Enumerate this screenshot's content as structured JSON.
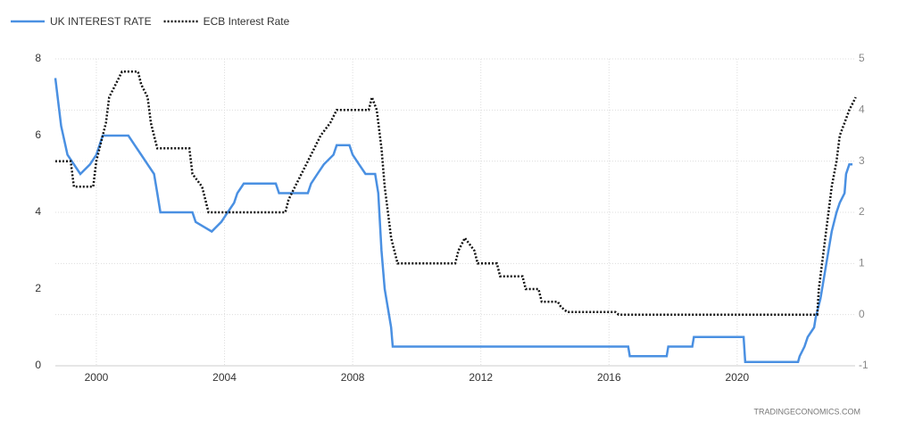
{
  "chart_data": {
    "type": "line",
    "source": "TRADINGECONOMICS.COM",
    "xlim": [
      1998.72,
      2023.68
    ],
    "xticks": [
      2000,
      2004,
      2008,
      2012,
      2016,
      2020
    ],
    "ylim": [
      0,
      8
    ],
    "yticks": [
      0,
      2,
      4,
      6,
      8
    ],
    "y2lim": [
      -1,
      5
    ],
    "y2ticks": [
      -1,
      0,
      1,
      2,
      3,
      4,
      5
    ],
    "grid": true,
    "legend": "top-left",
    "series": [
      {
        "name": "UK INTEREST RATE",
        "color": "#4a90e2",
        "dash": "solid",
        "x": [
          1998.72,
          1998.9,
          1999.1,
          1999.5,
          1999.8,
          2000.0,
          2000.2,
          2001.0,
          2001.2,
          2001.4,
          2001.6,
          2001.8,
          2001.9,
          2002.0,
          2003.0,
          2003.1,
          2003.6,
          2003.9,
          2004.1,
          2004.3,
          2004.4,
          2004.6,
          2005.6,
          2005.7,
          2006.6,
          2006.7,
          2006.9,
          2007.1,
          2007.4,
          2007.5,
          2007.9,
          2008.0,
          2008.2,
          2008.4,
          2008.7,
          2008.8,
          2008.9,
          2009.0,
          2009.1,
          2009.2,
          2009.25,
          2016.6,
          2016.65,
          2017.8,
          2017.85,
          2018.6,
          2018.65,
          2020.2,
          2020.25,
          2021.9,
          2021.95,
          2022.1,
          2022.2,
          2022.4,
          2022.45,
          2022.6,
          2022.7,
          2022.85,
          2022.95,
          2023.1,
          2023.2,
          2023.35,
          2023.4,
          2023.5,
          2023.6
        ],
        "values": [
          7.5,
          6.25,
          5.5,
          5.0,
          5.25,
          5.5,
          6.0,
          6.0,
          5.75,
          5.5,
          5.25,
          5.0,
          4.5,
          4.0,
          4.0,
          3.75,
          3.5,
          3.75,
          4.0,
          4.25,
          4.5,
          4.75,
          4.75,
          4.5,
          4.5,
          4.75,
          5.0,
          5.25,
          5.5,
          5.75,
          5.75,
          5.5,
          5.25,
          5.0,
          5.0,
          4.5,
          3.0,
          2.0,
          1.5,
          1.0,
          0.5,
          0.5,
          0.25,
          0.25,
          0.5,
          0.5,
          0.75,
          0.75,
          0.1,
          0.1,
          0.25,
          0.5,
          0.75,
          1.0,
          1.25,
          1.75,
          2.25,
          3.0,
          3.5,
          4.0,
          4.25,
          4.5,
          5.0,
          5.25,
          5.25
        ]
      },
      {
        "name": "ECB Interest Rate",
        "color": "#111111",
        "dash": "dotted",
        "axis": "y2",
        "x": [
          1998.72,
          1999.2,
          1999.3,
          1999.9,
          2000.0,
          2000.1,
          2000.2,
          2000.3,
          2000.4,
          2000.6,
          2000.8,
          2001.3,
          2001.4,
          2001.6,
          2001.7,
          2001.9,
          2002.9,
          2003.0,
          2003.3,
          2003.5,
          2005.9,
          2006.0,
          2006.2,
          2006.4,
          2006.6,
          2006.8,
          2007.0,
          2007.3,
          2007.5,
          2008.5,
          2008.6,
          2008.75,
          2008.9,
          2009.0,
          2009.1,
          2009.2,
          2009.3,
          2009.4,
          2011.2,
          2011.3,
          2011.5,
          2011.8,
          2011.9,
          2012.5,
          2012.6,
          2013.3,
          2013.4,
          2013.8,
          2013.9,
          2014.4,
          2014.5,
          2014.7,
          2016.2,
          2016.3,
          2022.5,
          2022.55,
          2022.7,
          2022.85,
          2022.95,
          2023.1,
          2023.2,
          2023.35,
          2023.5,
          2023.7
        ],
        "values": [
          3.0,
          3.0,
          2.5,
          2.5,
          3.0,
          3.25,
          3.5,
          3.75,
          4.25,
          4.5,
          4.75,
          4.75,
          4.5,
          4.25,
          3.75,
          3.25,
          3.25,
          2.75,
          2.5,
          2.0,
          2.0,
          2.25,
          2.5,
          2.75,
          3.0,
          3.25,
          3.5,
          3.75,
          4.0,
          4.0,
          4.25,
          4.0,
          3.25,
          2.5,
          2.0,
          1.5,
          1.25,
          1.0,
          1.0,
          1.25,
          1.5,
          1.25,
          1.0,
          1.0,
          0.75,
          0.75,
          0.5,
          0.5,
          0.25,
          0.25,
          0.15,
          0.05,
          0.05,
          0,
          0,
          0.5,
          1.25,
          2.0,
          2.5,
          3.0,
          3.5,
          3.75,
          4.0,
          4.25
        ]
      }
    ]
  }
}
